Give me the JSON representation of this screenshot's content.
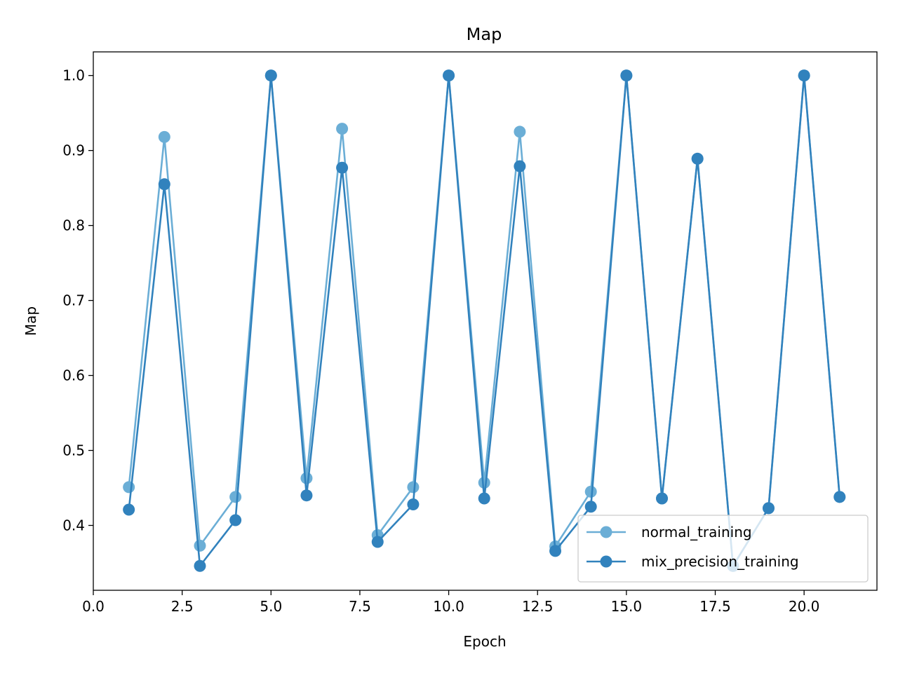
{
  "chart_data": {
    "type": "line",
    "title": "Map",
    "xlabel": "Epoch",
    "ylabel": "Map",
    "xlim": [
      0,
      22.05
    ],
    "ylim": [
      0.3135,
      1.0315
    ],
    "xticks": [
      0.0,
      2.5,
      5.0,
      7.5,
      10.0,
      12.5,
      15.0,
      17.5,
      20.0
    ],
    "xtick_labels": [
      "0.0",
      "2.5",
      "5.0",
      "7.5",
      "10.0",
      "12.5",
      "15.0",
      "17.5",
      "20.0"
    ],
    "yticks": [
      0.4,
      0.5,
      0.6,
      0.7,
      0.8,
      0.9,
      1.0
    ],
    "ytick_labels": [
      "0.4",
      "0.5",
      "0.6",
      "0.7",
      "0.8",
      "0.9",
      "1.0"
    ],
    "grid": false,
    "legend_position": "lower-right",
    "series": [
      {
        "name": "normal_training",
        "color": "#6baed6",
        "x": [
          1,
          2,
          3,
          4,
          5,
          6,
          7,
          8,
          9,
          10,
          11,
          12,
          13,
          14,
          15,
          16,
          17,
          18,
          19,
          20,
          21
        ],
        "values": [
          0.451,
          0.918,
          0.373,
          0.438,
          1.0,
          0.463,
          0.929,
          0.387,
          0.451,
          1.0,
          0.457,
          0.925,
          0.372,
          0.445,
          1.0,
          0.436,
          0.889,
          0.346,
          0.423,
          1.0,
          0.438
        ]
      },
      {
        "name": "mix_precision_training",
        "color": "#3182bd",
        "x": [
          1,
          2,
          3,
          4,
          5,
          6,
          7,
          8,
          9,
          10,
          11,
          12,
          13,
          14,
          15,
          16,
          17,
          18,
          19,
          20,
          21
        ],
        "values": [
          0.421,
          0.855,
          0.346,
          0.407,
          1.0,
          0.44,
          0.877,
          0.378,
          0.428,
          1.0,
          0.436,
          0.879,
          0.366,
          0.425,
          1.0,
          0.436,
          0.889,
          0.346,
          0.423,
          1.0,
          0.438
        ]
      }
    ]
  }
}
